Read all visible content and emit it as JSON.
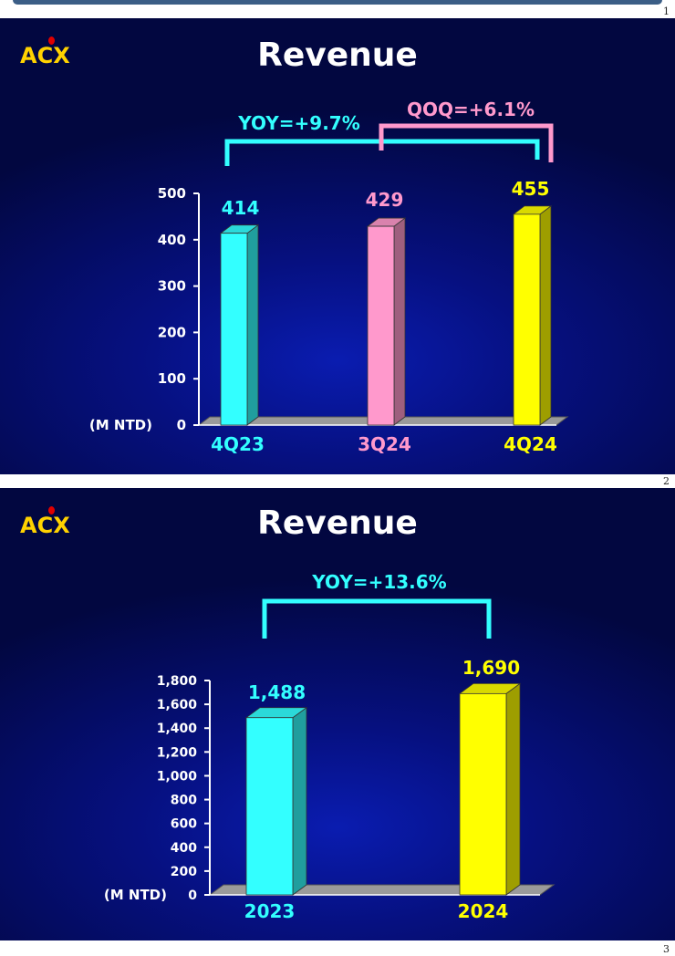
{
  "page_numbers": [
    "1",
    "2",
    "3"
  ],
  "logo_text": "ACX",
  "colors": {
    "cyan": "#33ffff",
    "pink": "#ff99cc",
    "yellow": "#ffff00",
    "white": "#ffffff"
  },
  "slides": [
    {
      "title": "Revenue",
      "yoy_label": "YOY=+9.7%",
      "qoq_label": "QOQ=+6.1%",
      "unit_label": "(M NTD)"
    },
    {
      "title": "Revenue",
      "yoy_label": "YOY=+13.6%",
      "unit_label": "(M NTD)"
    }
  ],
  "chart_data": [
    {
      "type": "bar",
      "title": "Revenue",
      "ylabel": "(M NTD)",
      "categories": [
        "4Q23",
        "3Q24",
        "4Q24"
      ],
      "values": [
        414,
        429,
        455
      ],
      "data_labels": [
        "414",
        "429",
        "455"
      ],
      "bar_colors": [
        "#33ffff",
        "#ff99cc",
        "#ffff00"
      ],
      "ylim": [
        0,
        500
      ],
      "y_ticks": [
        0,
        100,
        200,
        300,
        400,
        500
      ],
      "y_tick_labels": [
        "0",
        "100",
        "200",
        "300",
        "400",
        "500"
      ],
      "annotations": [
        "YOY=+9.7%",
        "QOQ=+6.1%"
      ]
    },
    {
      "type": "bar",
      "title": "Revenue",
      "ylabel": "(M NTD)",
      "categories": [
        "2023",
        "2024"
      ],
      "values": [
        1488,
        1690
      ],
      "data_labels": [
        "1,488",
        "1,690"
      ],
      "bar_colors": [
        "#33ffff",
        "#ffff00"
      ],
      "ylim": [
        0,
        1800
      ],
      "y_ticks": [
        0,
        200,
        400,
        600,
        800,
        1000,
        1200,
        1400,
        1600,
        1800
      ],
      "y_tick_labels": [
        "0",
        "200",
        "400",
        "600",
        "800",
        "1,000",
        "1,200",
        "1,400",
        "1,600",
        "1,800"
      ],
      "annotations": [
        "YOY=+13.6%"
      ]
    }
  ]
}
